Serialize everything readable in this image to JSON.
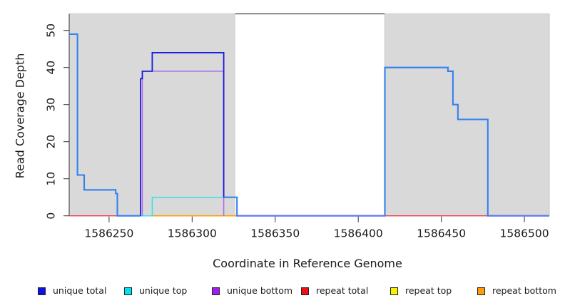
{
  "chart_data": {
    "type": "line",
    "step": true,
    "title": "",
    "xlabel": "Coordinate in Reference Genome",
    "ylabel": "Read Coverage Depth",
    "xlim": [
      1586226,
      1586515
    ],
    "ylim": [
      0,
      54.5
    ],
    "grid": false,
    "legend_position": "bottom",
    "xticks": [
      1586250,
      1586300,
      1586350,
      1586400,
      1586450,
      1586500
    ],
    "xtick_labels": [
      "1586250",
      "1586300",
      "1586350",
      "1586400",
      "1586450",
      "1586500"
    ],
    "yticks": [
      0,
      10,
      20,
      30,
      40,
      50
    ],
    "ytick_labels": [
      "0",
      "10",
      "20",
      "30",
      "40",
      "50"
    ],
    "background_regions": [
      {
        "name": "left-gray-region",
        "x0": 1586226,
        "x1": 1586326,
        "fill": "#d9d9d9",
        "edge": "#c6c6c6"
      },
      {
        "name": "white-repeat-region",
        "x0": 1586326,
        "x1": 1586416,
        "fill": "#ffffff",
        "top_border": "#6a6a6a"
      },
      {
        "name": "right-gray-region",
        "x0": 1586416,
        "x1": 1586515,
        "fill": "#d9d9d9",
        "edge": "#c6c6c6"
      }
    ],
    "series": [
      {
        "name": "repeat total",
        "color": "#ee3b52",
        "width": 1.4,
        "steps": [
          [
            1586226,
            0
          ],
          [
            1586515,
            0
          ]
        ]
      },
      {
        "name": "repeat top",
        "color": "#f5ef1b",
        "width": 1.4,
        "steps": [
          [
            1586276,
            0
          ],
          [
            1586327,
            0
          ]
        ]
      },
      {
        "name": "repeat bottom",
        "color": "#ff9d00",
        "width": 1.7,
        "steps": [
          [
            1586276,
            0
          ],
          [
            1586327,
            0
          ]
        ]
      },
      {
        "name": "light-blue coverage (left flank)",
        "color": "#3381f0",
        "width": 2.1,
        "steps": [
          [
            1586226,
            49
          ],
          [
            1586231,
            11
          ],
          [
            1586235,
            7
          ],
          [
            1586254,
            6
          ],
          [
            1586255,
            0
          ],
          [
            1586269,
            0
          ]
        ]
      },
      {
        "name": "light-blue coverage (right of unique block)",
        "color": "#3381f0",
        "width": 2.1,
        "steps": [
          [
            1586319,
            5
          ],
          [
            1586327,
            0
          ],
          [
            1586416,
            40
          ],
          [
            1586454,
            39
          ],
          [
            1586457,
            30
          ],
          [
            1586460,
            26
          ],
          [
            1586478,
            0
          ],
          [
            1586515,
            0
          ]
        ]
      },
      {
        "name": "zero-line overlap (white region)",
        "color": "#6b6bf2",
        "width": 1.6,
        "steps": [
          [
            1586327,
            0
          ],
          [
            1586416,
            0
          ]
        ]
      },
      {
        "name": "zero-line overlap (right flank)",
        "color": "#6b6bf2",
        "width": 1.6,
        "steps": [
          [
            1586478,
            0
          ],
          [
            1586515,
            0
          ]
        ]
      },
      {
        "name": "unique top",
        "color": "#2ee3ef",
        "width": 1.5,
        "steps": [
          [
            1586269,
            0
          ],
          [
            1586276,
            5
          ],
          [
            1586319,
            5
          ]
        ]
      },
      {
        "name": "unique bottom",
        "color": "#ab6ce2",
        "width": 1.5,
        "steps": [
          [
            1586270,
            0
          ],
          [
            1586270,
            39
          ],
          [
            1586319,
            0
          ]
        ]
      },
      {
        "name": "unique total",
        "color": "#1a1add",
        "width": 1.8,
        "steps": [
          [
            1586269,
            0
          ],
          [
            1586269,
            37
          ],
          [
            1586270,
            39
          ],
          [
            1586276,
            44
          ],
          [
            1586319,
            5
          ]
        ]
      }
    ]
  },
  "legend": {
    "items": [
      {
        "label": "unique total",
        "color": "#0f0fe8"
      },
      {
        "label": "unique top",
        "color": "#00e4f0"
      },
      {
        "label": "unique bottom",
        "color": "#a01ef0"
      },
      {
        "label": "repeat total",
        "color": "#ee1016"
      },
      {
        "label": "repeat top",
        "color": "#f4f400"
      },
      {
        "label": "repeat bottom",
        "color": "#ff9d0a"
      }
    ]
  }
}
